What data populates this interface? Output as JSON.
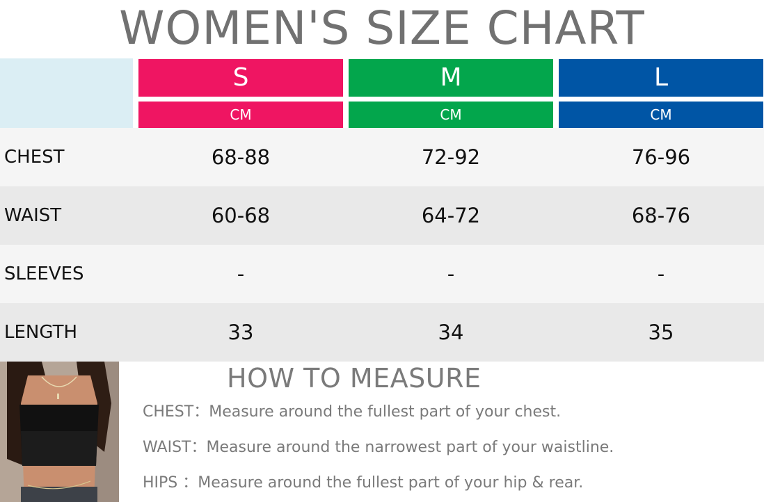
{
  "title": "WOMEN'S SIZE CHART",
  "sizes": [
    {
      "name": "S",
      "unit": "CM",
      "color": "#ef1562"
    },
    {
      "name": "M",
      "unit": "CM",
      "color": "#03a64c"
    },
    {
      "name": "L",
      "unit": "CM",
      "color": "#0055a5"
    }
  ],
  "rows": [
    {
      "label": "CHEST",
      "values": [
        "68-88",
        "72-92",
        "76-96"
      ]
    },
    {
      "label": "WAIST",
      "values": [
        "60-68",
        "64-72",
        "68-76"
      ]
    },
    {
      "label": "SLEEVES",
      "values": [
        "-",
        "-",
        "-"
      ]
    },
    {
      "label": "LENGTH",
      "values": [
        "33",
        "34",
        "35"
      ]
    }
  ],
  "measure": {
    "title": "HOW TO MEASURE",
    "lines": [
      "CHEST：Measure around the fullest part of your chest.",
      "WAIST：Measure around the narrowest part of your waistline.",
      "HIPS ：Measure around the fullest part of your hip & rear."
    ]
  }
}
